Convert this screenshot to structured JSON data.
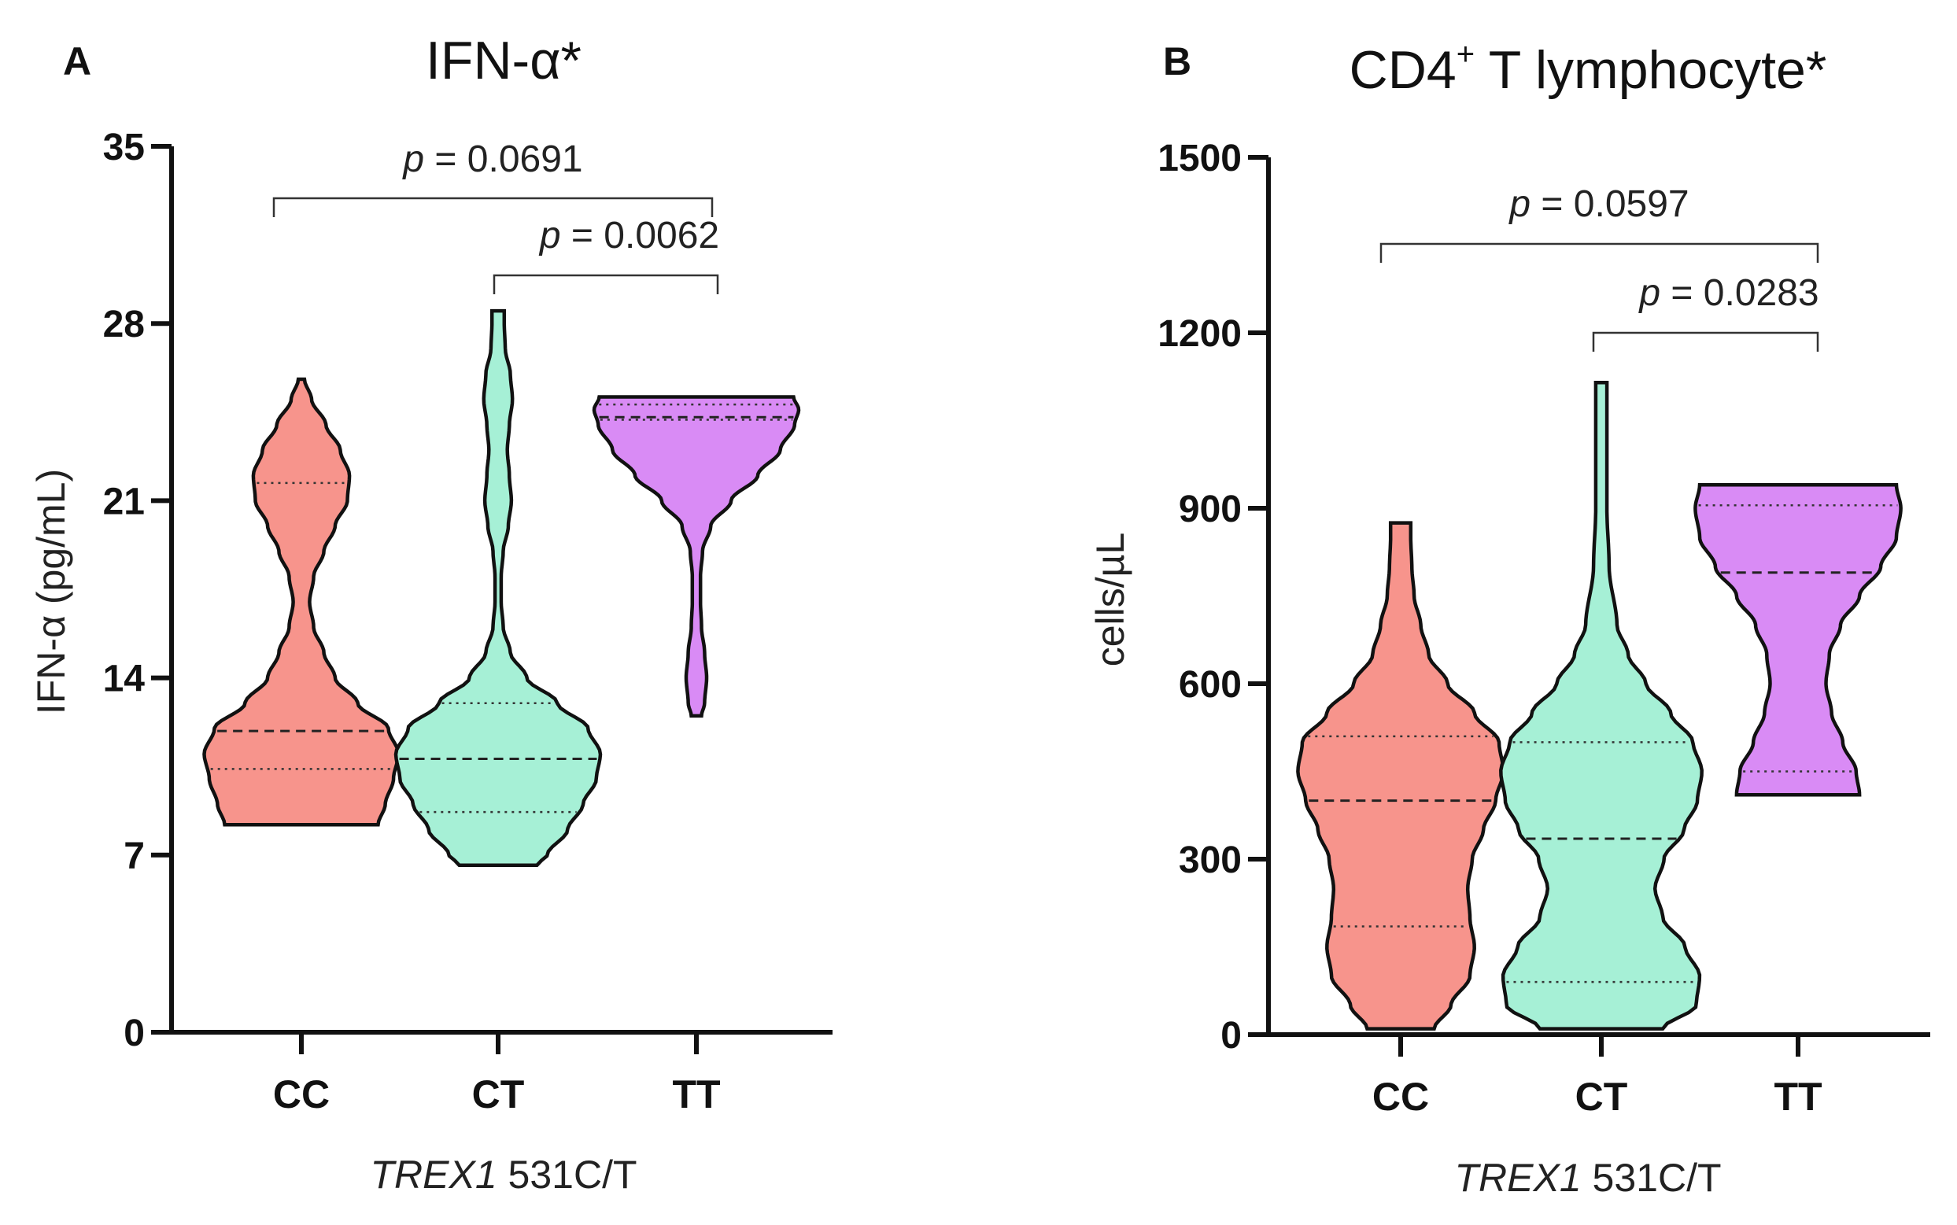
{
  "chart_data": [
    {
      "type": "violin",
      "panel_label": "A",
      "title": "IFN-α*",
      "ylabel": "IFN-α (pg/mL)",
      "xlabel_italic": "TREX1",
      "xlabel_rest": " 531C/T",
      "ylim": [
        0,
        35
      ],
      "yticks": [
        0,
        7,
        14,
        21,
        28,
        35
      ],
      "categories": [
        "CC",
        "CT",
        "TT"
      ],
      "series": [
        {
          "name": "CC",
          "color": "#F7948C",
          "min": 8.2,
          "max": 25.8,
          "q1": 10.4,
          "median": 11.9,
          "q3": 21.7,
          "density": [
            [
              8.2,
              0.75
            ],
            [
              9,
              0.82
            ],
            [
              10,
              0.9
            ],
            [
              11,
              0.95
            ],
            [
              12,
              0.85
            ],
            [
              13,
              0.55
            ],
            [
              14,
              0.33
            ],
            [
              15,
              0.22
            ],
            [
              16,
              0.12
            ],
            [
              17,
              0.08
            ],
            [
              18,
              0.12
            ],
            [
              19,
              0.22
            ],
            [
              20,
              0.33
            ],
            [
              21,
              0.45
            ],
            [
              22,
              0.47
            ],
            [
              23,
              0.38
            ],
            [
              24,
              0.24
            ],
            [
              25,
              0.1
            ],
            [
              25.8,
              0.03
            ]
          ]
        },
        {
          "name": "CT",
          "color": "#A6F0D6",
          "min": 6.6,
          "max": 28.5,
          "q1": 8.7,
          "median": 10.8,
          "q3": 13.0,
          "density": [
            [
              6.6,
              0.38
            ],
            [
              7,
              0.48
            ],
            [
              8,
              0.68
            ],
            [
              9,
              0.83
            ],
            [
              10,
              0.96
            ],
            [
              11,
              1.0
            ],
            [
              12,
              0.88
            ],
            [
              13,
              0.58
            ],
            [
              14,
              0.28
            ],
            [
              15,
              0.12
            ],
            [
              16,
              0.05
            ],
            [
              17,
              0.03
            ],
            [
              18,
              0.03
            ],
            [
              19,
              0.05
            ],
            [
              20,
              0.1
            ],
            [
              21,
              0.13
            ],
            [
              22,
              0.11
            ],
            [
              23,
              0.09
            ],
            [
              24,
              0.11
            ],
            [
              25,
              0.14
            ],
            [
              26,
              0.12
            ],
            [
              27,
              0.07
            ],
            [
              28,
              0.06
            ],
            [
              28.5,
              0.06
            ]
          ]
        },
        {
          "name": "TT",
          "color": "#D98BF5",
          "min": 12.5,
          "max": 25.1,
          "q1": 24.2,
          "median": 24.3,
          "q3": 24.8,
          "density": [
            [
              12.5,
              0.05
            ],
            [
              13,
              0.08
            ],
            [
              14,
              0.1
            ],
            [
              15,
              0.08
            ],
            [
              16,
              0.05
            ],
            [
              17,
              0.04
            ],
            [
              18,
              0.04
            ],
            [
              19,
              0.06
            ],
            [
              20,
              0.14
            ],
            [
              21,
              0.34
            ],
            [
              22,
              0.6
            ],
            [
              23,
              0.82
            ],
            [
              24,
              0.96
            ],
            [
              24.6,
              1.0
            ],
            [
              25.1,
              0.95
            ]
          ]
        }
      ],
      "comparisons": [
        {
          "from": "CC",
          "to": "TT",
          "p_italic": "p",
          "p_text": " = 0.0691"
        },
        {
          "from": "CT",
          "to": "TT",
          "p_italic": "p",
          "p_text": " = 0.0062"
        }
      ]
    },
    {
      "type": "violin",
      "panel_label": "B",
      "title_main": "CD4",
      "title_sup": "+",
      "title_rest": " T lymphocyte*",
      "ylabel": "cells/µL",
      "xlabel_italic": "TREX1",
      "xlabel_rest": " 531C/T",
      "ylim": [
        0,
        1500
      ],
      "yticks": [
        0,
        300,
        600,
        900,
        1200,
        1500
      ],
      "categories": [
        "CC",
        "CT",
        "TT"
      ],
      "series": [
        {
          "name": "CC",
          "color": "#F7948C",
          "min": 10,
          "max": 875,
          "q1": 185,
          "median": 400,
          "q3": 510,
          "density": [
            [
              10,
              0.3
            ],
            [
              50,
              0.45
            ],
            [
              100,
              0.62
            ],
            [
              150,
              0.66
            ],
            [
              200,
              0.62
            ],
            [
              250,
              0.6
            ],
            [
              300,
              0.64
            ],
            [
              350,
              0.74
            ],
            [
              400,
              0.85
            ],
            [
              450,
              0.92
            ],
            [
              500,
              0.88
            ],
            [
              550,
              0.66
            ],
            [
              600,
              0.42
            ],
            [
              650,
              0.25
            ],
            [
              700,
              0.18
            ],
            [
              750,
              0.12
            ],
            [
              800,
              0.1
            ],
            [
              850,
              0.09
            ],
            [
              875,
              0.09
            ]
          ]
        },
        {
          "name": "CT",
          "color": "#A6F0D6",
          "min": 10,
          "max": 1115,
          "q1": 90,
          "median": 335,
          "q3": 500,
          "density": [
            [
              10,
              0.55
            ],
            [
              50,
              0.85
            ],
            [
              100,
              0.88
            ],
            [
              150,
              0.75
            ],
            [
              200,
              0.55
            ],
            [
              250,
              0.48
            ],
            [
              300,
              0.56
            ],
            [
              350,
              0.74
            ],
            [
              400,
              0.86
            ],
            [
              450,
              0.9
            ],
            [
              500,
              0.82
            ],
            [
              550,
              0.62
            ],
            [
              600,
              0.4
            ],
            [
              650,
              0.24
            ],
            [
              700,
              0.14
            ],
            [
              800,
              0.07
            ],
            [
              900,
              0.05
            ],
            [
              1000,
              0.05
            ],
            [
              1115,
              0.05
            ]
          ]
        },
        {
          "name": "TT",
          "color": "#D98BF5",
          "min": 410,
          "max": 940,
          "q1": 450,
          "median": 790,
          "q3": 905,
          "density": [
            [
              410,
              0.55
            ],
            [
              450,
              0.52
            ],
            [
              500,
              0.4
            ],
            [
              550,
              0.3
            ],
            [
              600,
              0.25
            ],
            [
              650,
              0.28
            ],
            [
              700,
              0.38
            ],
            [
              750,
              0.55
            ],
            [
              800,
              0.74
            ],
            [
              850,
              0.88
            ],
            [
              900,
              0.92
            ],
            [
              940,
              0.88
            ]
          ]
        }
      ],
      "comparisons": [
        {
          "from": "CC",
          "to": "TT",
          "p_italic": "p",
          "p_text": " = 0.0597"
        },
        {
          "from": "CT",
          "to": "TT",
          "p_italic": "p",
          "p_text": " = 0.0283"
        }
      ]
    }
  ]
}
